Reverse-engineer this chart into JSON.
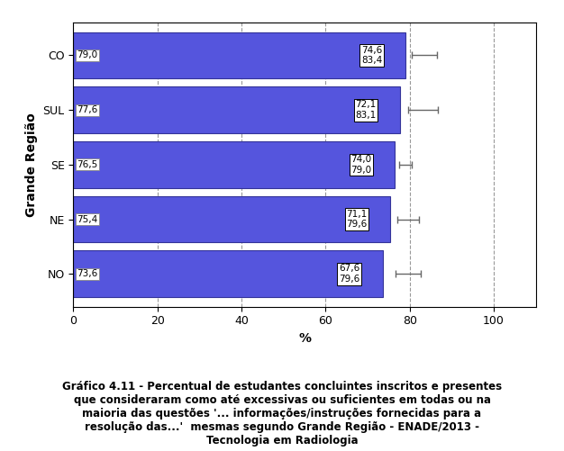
{
  "categories": [
    "NO",
    "NE",
    "SE",
    "SUL",
    "CO"
  ],
  "bar_values": [
    73.6,
    75.4,
    76.5,
    77.6,
    79.0
  ],
  "label_left_values": [
    "73,6",
    "75,4",
    "76,5",
    "77,6",
    "79,0"
  ],
  "label_box_top": [
    "67,6",
    "71,1",
    "74,0",
    "72,1",
    "74,6"
  ],
  "label_box_bottom": [
    "79,6",
    "79,6",
    "79,0",
    "83,1",
    "83,4"
  ],
  "error_centers": [
    79.6,
    79.6,
    79.0,
    83.1,
    83.4
  ],
  "error_xerr": [
    3.0,
    2.5,
    1.5,
    3.5,
    3.0
  ],
  "bar_color": "#5555DD",
  "bar_edgecolor": "#333399",
  "background_color": "#ffffff",
  "grid_color": "#999999",
  "xlabel": "%",
  "ylabel": "Grande Região",
  "xlim": [
    0,
    110
  ],
  "xticks": [
    0,
    20,
    40,
    60,
    80,
    100
  ],
  "title_lines": [
    "Gráfico 4.11 - Percentual de estudantes concluintes inscritos e presentes",
    "que consideraram como até excessivas ou suficientes em todas ou na",
    "maioria das questões '... informações/instruções fornecidas para a",
    "resolução das...'  mesmas segundo Grande Região - ENADE/2013 -",
    "Tecnologia em Radiologia"
  ],
  "title_fontsize": 8.5,
  "axis_label_fontsize": 10,
  "tick_fontsize": 9,
  "annotation_fontsize": 7.5
}
